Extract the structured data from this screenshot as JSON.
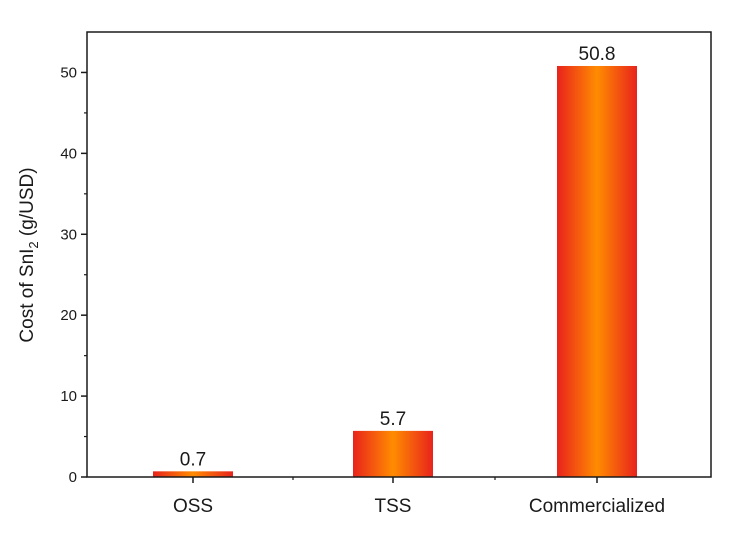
{
  "chart_data": {
    "type": "bar",
    "categories": [
      "OSS",
      "TSS",
      "Commercialized"
    ],
    "values": [
      0.7,
      5.7,
      50.8
    ],
    "data_labels": [
      "0.7",
      "5.7",
      "50.8"
    ],
    "title": "",
    "xlabel": "",
    "ylabel": {
      "prefix": "Cost of SnI",
      "subscript": "2",
      "suffix": " (g/USD)"
    },
    "ylim": [
      0,
      55
    ],
    "yticks": [
      0,
      10,
      20,
      30,
      40,
      50
    ],
    "grid": false,
    "legend": "none",
    "colors": {
      "bar_edge": "#e8231c",
      "bar_center": "#ff8c00",
      "axis": "#1a1a1a"
    }
  }
}
